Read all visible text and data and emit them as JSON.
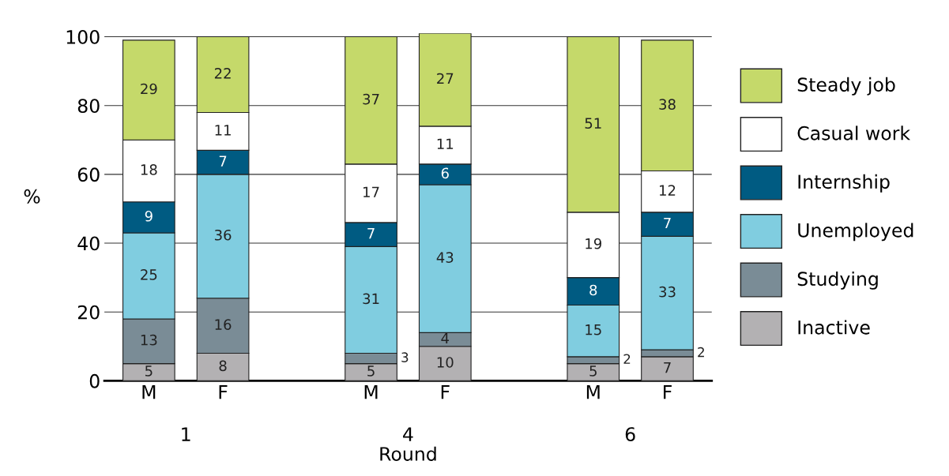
{
  "chart_data": {
    "type": "bar",
    "stacked": true,
    "xlabel": "Round",
    "ylabel": "%",
    "categories": [
      "M",
      "F",
      null,
      "M",
      "F",
      null,
      "M",
      "F"
    ],
    "series": [
      {
        "name": "Inactive",
        "color": "#b3b1b3",
        "values": [
          5,
          8,
          null,
          5,
          10,
          null,
          5,
          7
        ]
      },
      {
        "name": "Studying",
        "color": "#7a8c96",
        "values": [
          13,
          16,
          null,
          3,
          4,
          null,
          2,
          2
        ]
      },
      {
        "name": "Unemployed",
        "color": "#80cde0",
        "values": [
          25,
          36,
          null,
          31,
          43,
          null,
          15,
          33
        ]
      },
      {
        "name": "Internship",
        "color": "#005b82",
        "values": [
          9,
          7,
          null,
          7,
          6,
          null,
          8,
          7
        ]
      },
      {
        "name": "Casual work",
        "color": "#ffffff",
        "values": [
          18,
          11,
          null,
          17,
          11,
          null,
          19,
          12
        ]
      },
      {
        "name": "Steady job",
        "color": "#c5d96a",
        "values": [
          29,
          22,
          null,
          37,
          27,
          null,
          51,
          38
        ]
      }
    ],
    "annotations": [
      "1",
      "4",
      "6"
    ],
    "ylim": [
      0,
      101
    ],
    "yticks": [
      0,
      20,
      40,
      60,
      80,
      100
    ],
    "grid": "y",
    "data_labels": true,
    "legend": "right"
  }
}
